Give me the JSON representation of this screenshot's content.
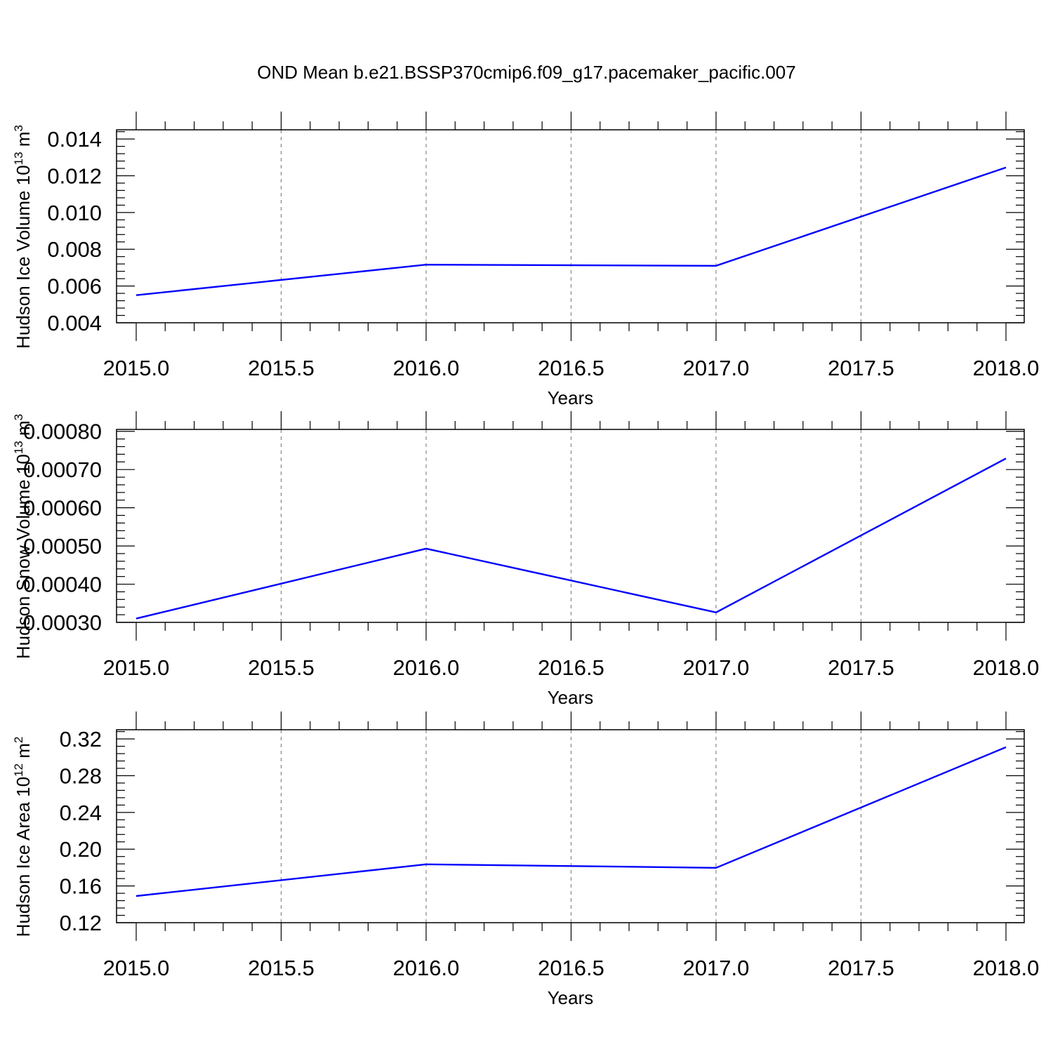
{
  "page_title": "OND Mean b.e21.BSSP370cmip6.f09_g17.pacemaker_pacific.007",
  "chart_data": [
    {
      "type": "line",
      "xlabel": "Years",
      "ylabel": "Hudson Ice Volume 10",
      "ylabel_exp": "13",
      "ylabel_unit": " m",
      "ylabel_unit_exp": "3",
      "xlim": [
        2015.0,
        2018.0
      ],
      "ylim": [
        0.004,
        0.0145
      ],
      "x_ticks": [
        2015.0,
        2015.5,
        2016.0,
        2016.5,
        2017.0,
        2017.5,
        2018.0
      ],
      "x_tick_labels": [
        "2015.0",
        "2015.5",
        "2016.0",
        "2016.5",
        "2017.0",
        "2017.5",
        "2018.0"
      ],
      "y_ticks": [
        0.004,
        0.006,
        0.008,
        0.01,
        0.012,
        0.014
      ],
      "y_tick_labels": [
        "0.004",
        "0.006",
        "0.008",
        "0.010",
        "0.012",
        "0.014"
      ],
      "grid": "vertical-dashed",
      "color": "#0000ff",
      "x": [
        2015,
        2016,
        2017,
        2018
      ],
      "y": [
        0.0055,
        0.00716,
        0.0071,
        0.01245
      ]
    },
    {
      "type": "line",
      "xlabel": "Years",
      "ylabel": "Hudson Snow Volume 10",
      "ylabel_exp": "13",
      "ylabel_unit": " m",
      "ylabel_unit_exp": "3",
      "xlim": [
        2015.0,
        2018.0
      ],
      "ylim": [
        0.0003,
        0.000805
      ],
      "x_ticks": [
        2015.0,
        2015.5,
        2016.0,
        2016.5,
        2017.0,
        2017.5,
        2018.0
      ],
      "x_tick_labels": [
        "2015.0",
        "2015.5",
        "2016.0",
        "2016.5",
        "2017.0",
        "2017.5",
        "2018.0"
      ],
      "y_ticks": [
        0.0003,
        0.0004,
        0.0005,
        0.0006,
        0.0007,
        0.0008
      ],
      "y_tick_labels": [
        "0.00030",
        "0.00040",
        "0.00050",
        "0.00060",
        "0.00070",
        "0.00080"
      ],
      "grid": "vertical-dashed",
      "color": "#0000ff",
      "x": [
        2015,
        2016,
        2017,
        2018
      ],
      "y": [
        0.00031,
        0.000493,
        0.000326,
        0.000729
      ]
    },
    {
      "type": "line",
      "xlabel": "Years",
      "ylabel": "Hudson Ice Area 10",
      "ylabel_exp": "12",
      "ylabel_unit": " m",
      "ylabel_unit_exp": "2",
      "xlim": [
        2015.0,
        2018.0
      ],
      "ylim": [
        0.12,
        0.33
      ],
      "x_ticks": [
        2015.0,
        2015.5,
        2016.0,
        2016.5,
        2017.0,
        2017.5,
        2018.0
      ],
      "x_tick_labels": [
        "2015.0",
        "2015.5",
        "2016.0",
        "2016.5",
        "2017.0",
        "2017.5",
        "2018.0"
      ],
      "y_ticks": [
        0.12,
        0.16,
        0.2,
        0.24,
        0.28,
        0.32
      ],
      "y_tick_labels": [
        "0.12",
        "0.16",
        "0.20",
        "0.24",
        "0.28",
        "0.32"
      ],
      "grid": "vertical-dashed",
      "color": "#0000ff",
      "x": [
        2015,
        2016,
        2017,
        2018
      ],
      "y": [
        0.149,
        0.1835,
        0.1797,
        0.311
      ]
    }
  ]
}
